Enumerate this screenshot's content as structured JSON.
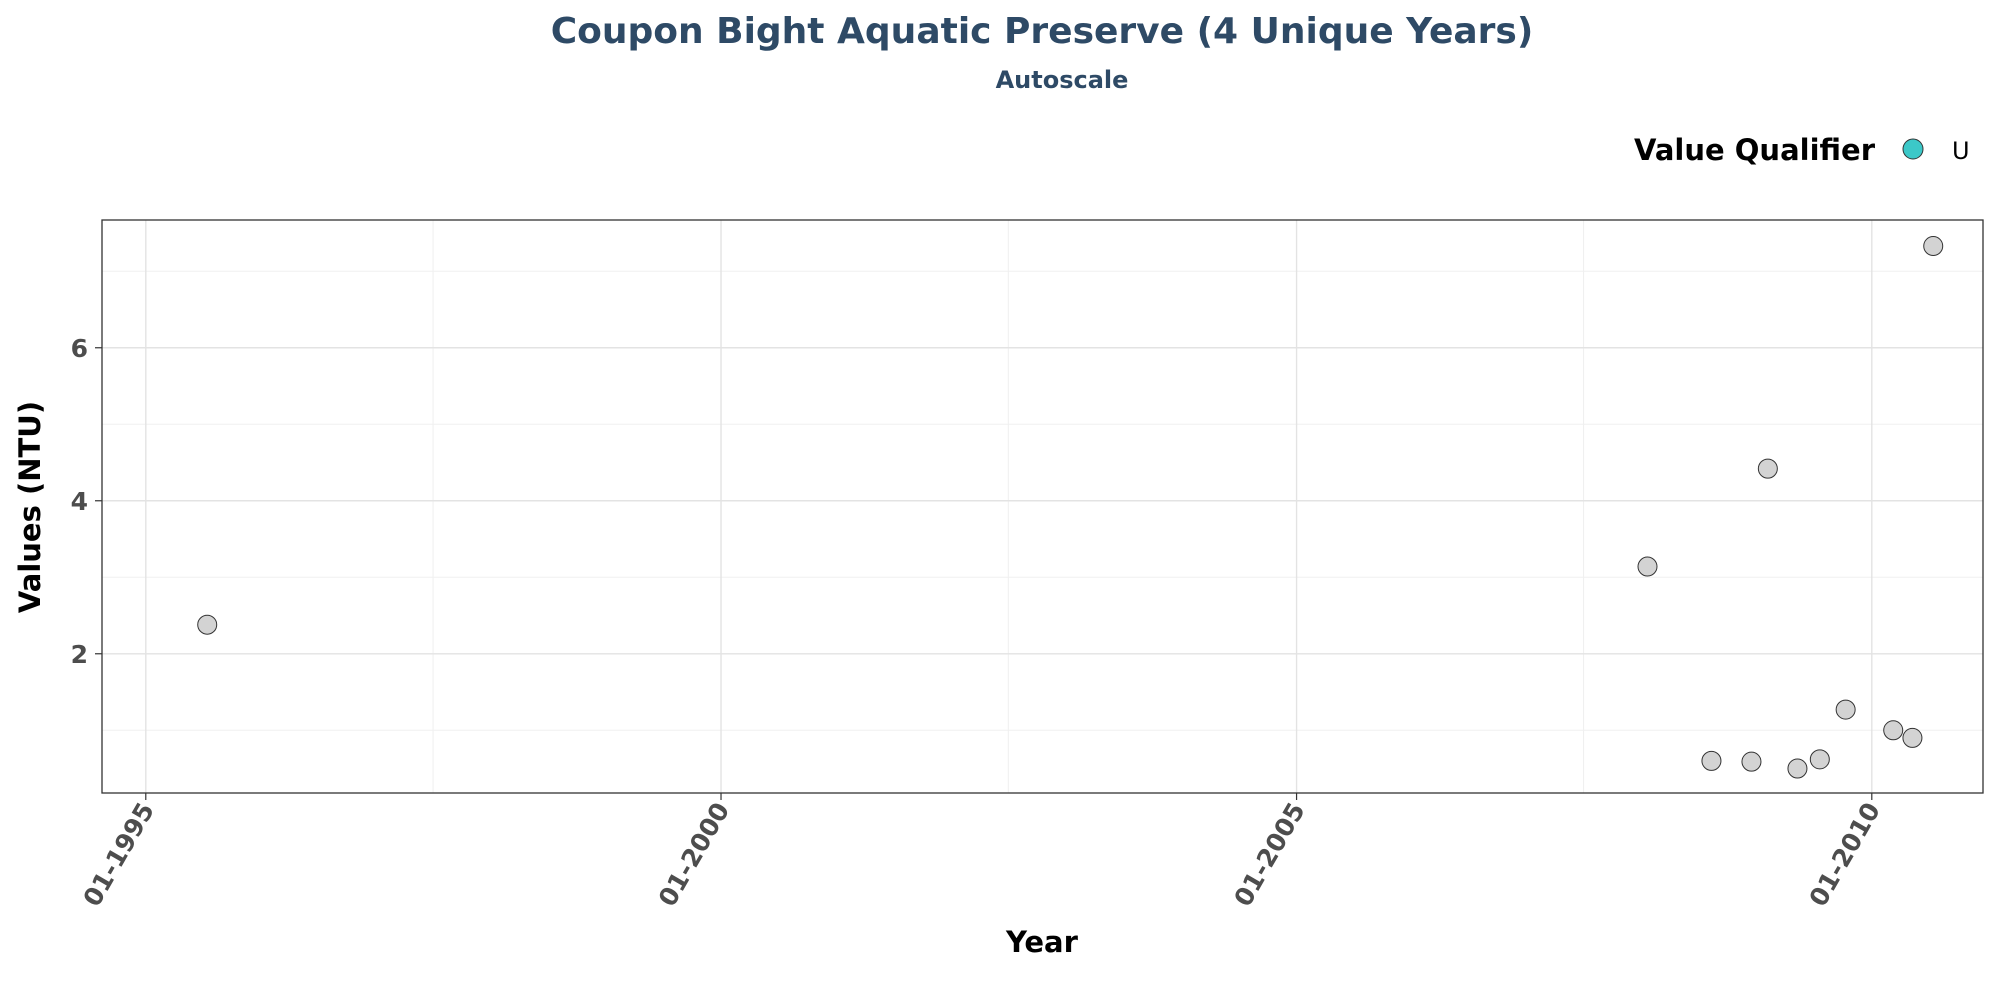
{
  "chart_data": {
    "type": "scatter",
    "title": "Coupon Bight Aquatic Preserve (4 Unique Years)",
    "subtitle": "Autoscale",
    "xlabel": "Year",
    "ylabel": "Values (NTU)",
    "xlim": [
      "1994-08-15",
      "2010-12-20"
    ],
    "ylim": [
      0.18,
      7.67
    ],
    "x_ticks": [
      {
        "date": "1995-01-01",
        "label": "01-1995"
      },
      {
        "date": "2000-01-01",
        "label": "01-2000"
      },
      {
        "date": "2005-01-01",
        "label": "01-2005"
      },
      {
        "date": "2010-01-01",
        "label": "01-2010"
      }
    ],
    "x_minor_ticks": [
      "1997-07-01",
      "2002-07-01",
      "2007-07-01"
    ],
    "y_ticks": [
      2,
      4,
      6
    ],
    "y_minor_ticks": [
      1,
      3,
      5,
      7
    ],
    "grid": true,
    "legend": {
      "title": "Value Qualifier",
      "placement": "top-right",
      "entries": [
        {
          "label": "U",
          "color": "#3cc8c8"
        }
      ]
    },
    "point_color": "#d3d3d3",
    "point_stroke": "#333333",
    "series": [
      {
        "points": [
          {
            "x": "1995-07-15",
            "y": 2.38
          },
          {
            "x": "2008-01-20",
            "y": 3.14
          },
          {
            "x": "2008-08-10",
            "y": 0.6
          },
          {
            "x": "2008-12-15",
            "y": 0.59
          },
          {
            "x": "2009-02-05",
            "y": 4.42
          },
          {
            "x": "2009-05-10",
            "y": 0.5
          },
          {
            "x": "2009-07-20",
            "y": 0.62
          },
          {
            "x": "2009-10-10",
            "y": 1.27
          },
          {
            "x": "2010-03-10",
            "y": 1.0
          },
          {
            "x": "2010-05-10",
            "y": 0.9
          },
          {
            "x": "2010-07-15",
            "y": 7.33
          }
        ]
      }
    ]
  }
}
